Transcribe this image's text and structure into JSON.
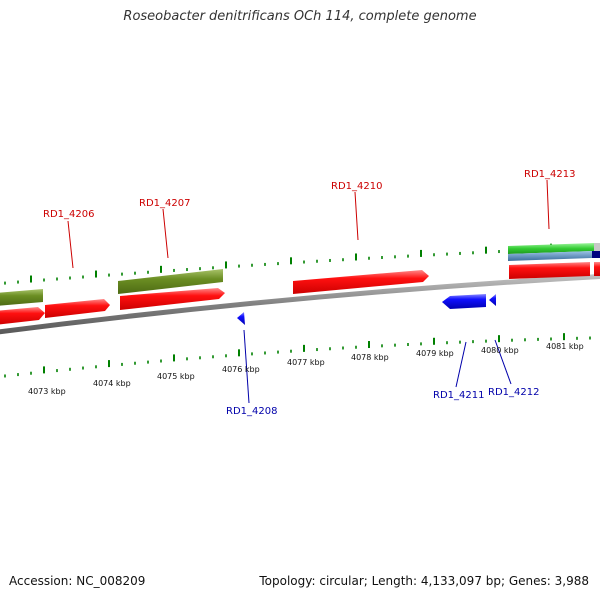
{
  "title": "Roseobacter denitrificans OCh 114, complete genome",
  "footer": {
    "accession": "Accession: NC_008209",
    "topology": "Topology: circular; Length: 4,133,097 bp; Genes: 3,988"
  },
  "colors": {
    "forward_cds": "#ff0000",
    "reverse_cds": "#0000ff",
    "olive_feature": "#6b8e23",
    "green_feature": "#33cc33",
    "steelblue_feature": "#4682b4",
    "navy_feature": "#000080",
    "tick_mark": "#008000",
    "backbone": "#808080",
    "forward_label": "#cc0000",
    "reverse_label": "#0000aa"
  },
  "scale_labels": [
    "4073 kbp",
    "4074 kbp",
    "4075 kbp",
    "4076 kbp",
    "4077 kbp",
    "4078 kbp",
    "4079 kbp",
    "4080 kbp",
    "4081 kbp"
  ],
  "gene_labels_forward": [
    "RD1_4206",
    "RD1_4207",
    "RD1_4210",
    "RD1_4213"
  ],
  "gene_labels_reverse": [
    "RD1_4208",
    "RD1_4211",
    "RD1_4212"
  ]
}
